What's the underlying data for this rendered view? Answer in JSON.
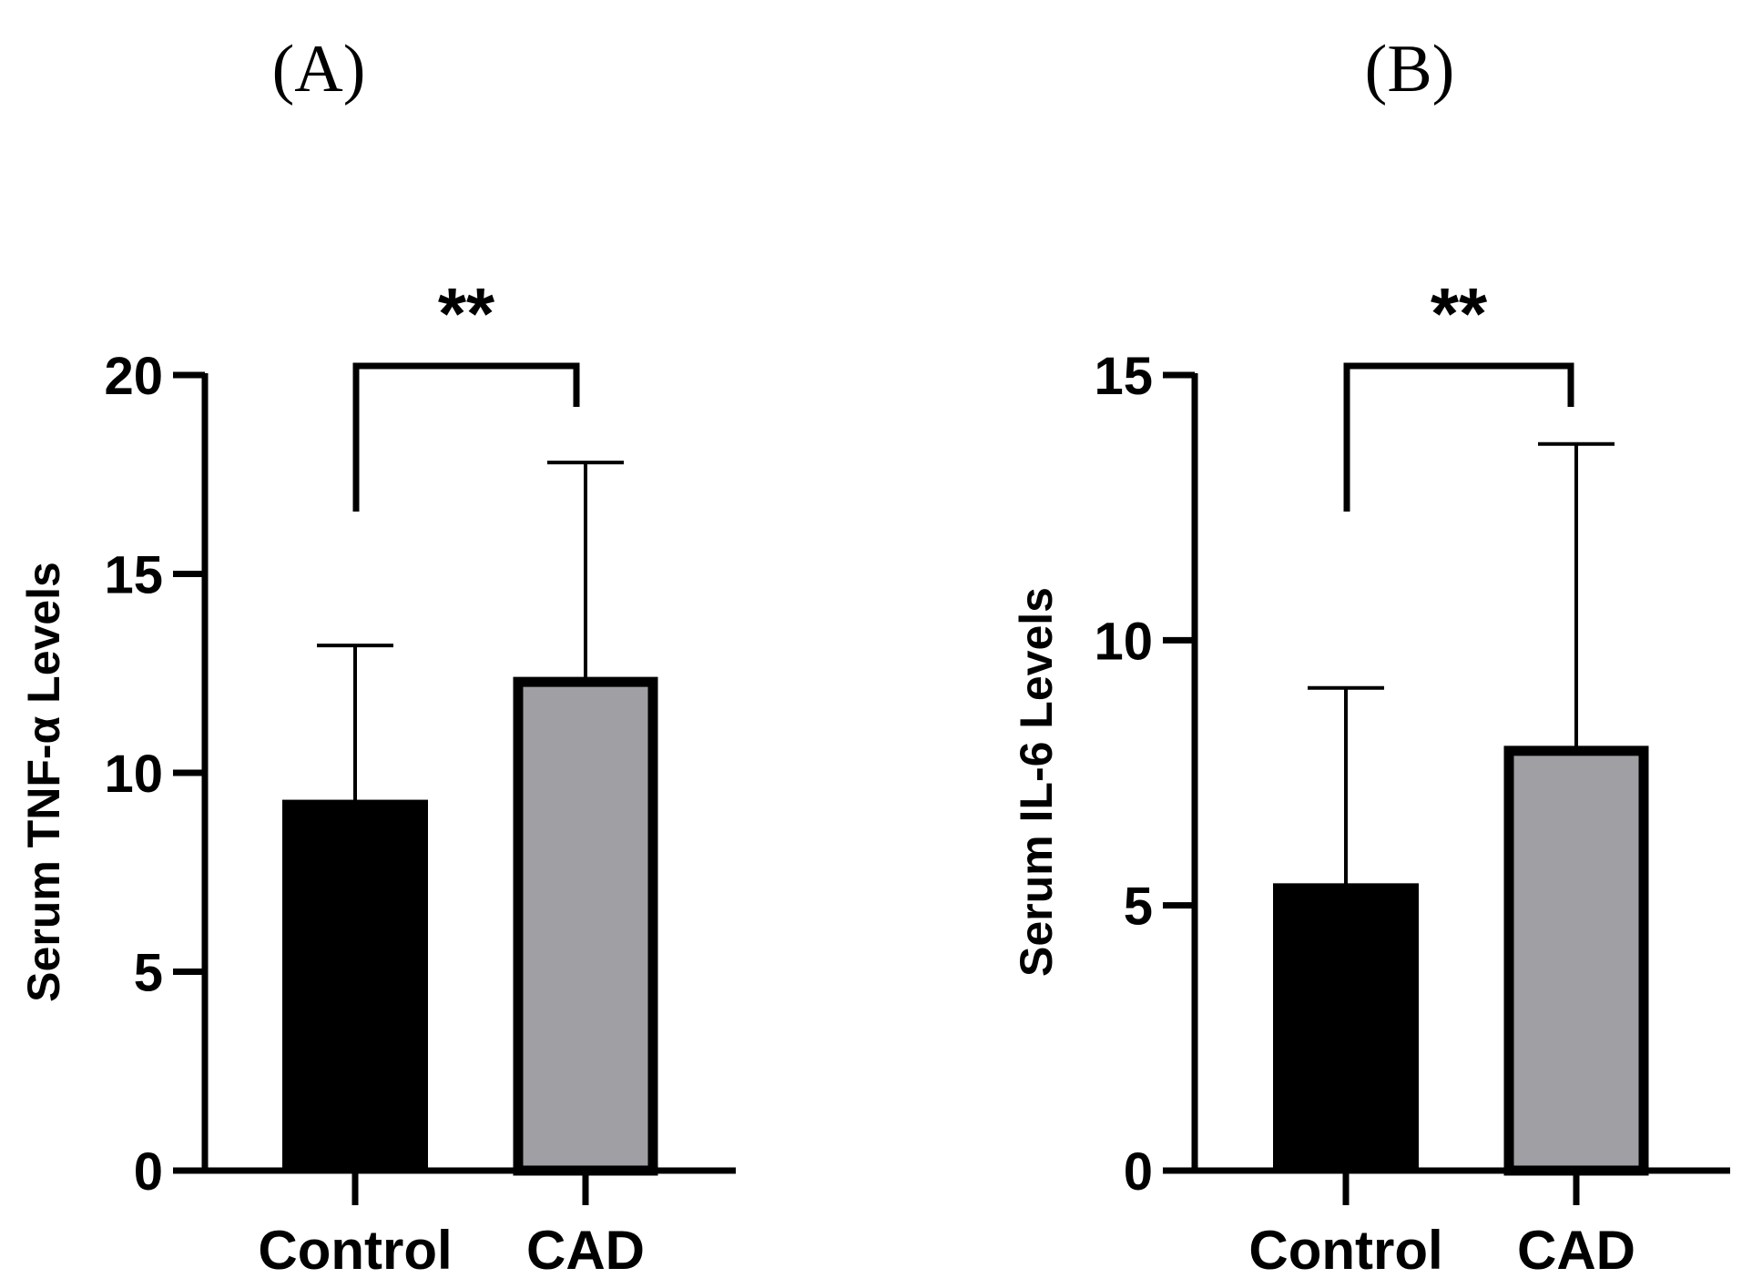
{
  "chart_data": [
    {
      "type": "bar",
      "panel_label": "(A)",
      "categories": [
        "Control",
        "CAD"
      ],
      "values": [
        9.3,
        12.4
      ],
      "error_upper": [
        13.2,
        17.8
      ],
      "bar_fills": [
        "#000000",
        "#a09fa3"
      ],
      "ylabel": "Serum TNF-α Levels",
      "ylim": [
        0,
        20
      ],
      "yticks": [
        0,
        5,
        10,
        15,
        20
      ],
      "ytick_labels": [
        "0",
        "5",
        "10",
        "15",
        "20"
      ],
      "significance": "**",
      "grid": false,
      "legend": "none"
    },
    {
      "type": "bar",
      "panel_label": "(B)",
      "categories": [
        "Control",
        "CAD"
      ],
      "values": [
        5.4,
        8.0
      ],
      "error_upper": [
        9.1,
        13.7
      ],
      "bar_fills": [
        "#000000",
        "#a09fa3"
      ],
      "ylabel": "Serum IL-6 Levels",
      "ylim": [
        0,
        15
      ],
      "yticks": [
        0,
        5,
        10,
        15
      ],
      "ytick_labels": [
        "0",
        "5",
        "10",
        "15"
      ],
      "significance": "**",
      "grid": false,
      "legend": "none"
    }
  ]
}
